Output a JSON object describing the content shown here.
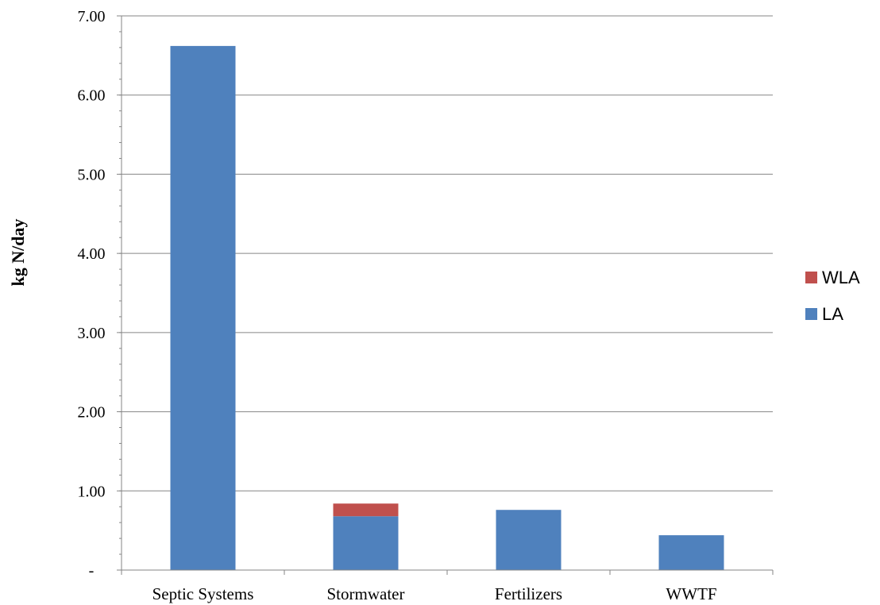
{
  "chart_data": {
    "type": "bar",
    "stacked": true,
    "categories": [
      "Septic Systems",
      "Stormwater",
      "Fertilizers",
      "WWTF"
    ],
    "series": [
      {
        "name": "LA",
        "color": "#4f81bd",
        "values": [
          6.62,
          0.68,
          0.76,
          0.44
        ]
      },
      {
        "name": "WLA",
        "color": "#c0504d",
        "values": [
          0.0,
          0.16,
          0.0,
          0.0
        ]
      }
    ],
    "ylabel": "kg N/day",
    "ylim": [
      0,
      7
    ],
    "yticks": [
      0,
      1,
      2,
      3,
      4,
      5,
      6,
      7
    ],
    "ytick_labels": [
      "-",
      "1.00",
      "2.00",
      "3.00",
      "4.00",
      "5.00",
      "6.00",
      "7.00"
    ],
    "legend_order": [
      "WLA",
      "LA"
    ],
    "legend_placement": "right",
    "grid": true
  }
}
